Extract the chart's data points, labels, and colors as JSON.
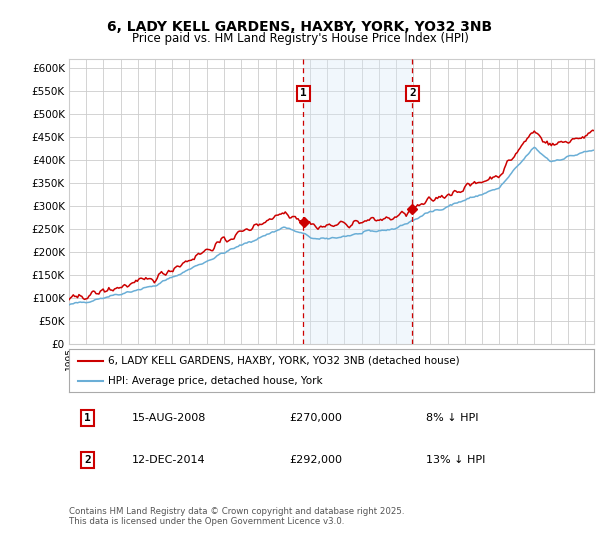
{
  "title": "6, LADY KELL GARDENS, HAXBY, YORK, YO32 3NB",
  "subtitle": "Price paid vs. HM Land Registry's House Price Index (HPI)",
  "ylim": [
    0,
    620000
  ],
  "yticks": [
    0,
    50000,
    100000,
    150000,
    200000,
    250000,
    300000,
    350000,
    400000,
    450000,
    500000,
    550000,
    600000
  ],
  "xlim_start": 1995.0,
  "xlim_end": 2025.5,
  "transaction1_date": 2008.62,
  "transaction1_price": 270000,
  "transaction2_date": 2014.95,
  "transaction2_price": 292000,
  "hpi_line_color": "#6aaed6",
  "price_line_color": "#cc0000",
  "dashed_line_color": "#cc0000",
  "shade_color": "#d8eaf8",
  "legend_line1": "6, LADY KELL GARDENS, HAXBY, YORK, YO32 3NB (detached house)",
  "legend_line2": "HPI: Average price, detached house, York",
  "annot1_date": "15-AUG-2008",
  "annot1_price": "£270,000",
  "annot1_pct": "8% ↓ HPI",
  "annot2_date": "12-DEC-2014",
  "annot2_price": "£292,000",
  "annot2_pct": "13% ↓ HPI",
  "footer": "Contains HM Land Registry data © Crown copyright and database right 2025.\nThis data is licensed under the Open Government Licence v3.0.",
  "background_color": "#ffffff",
  "grid_color": "#cccccc"
}
